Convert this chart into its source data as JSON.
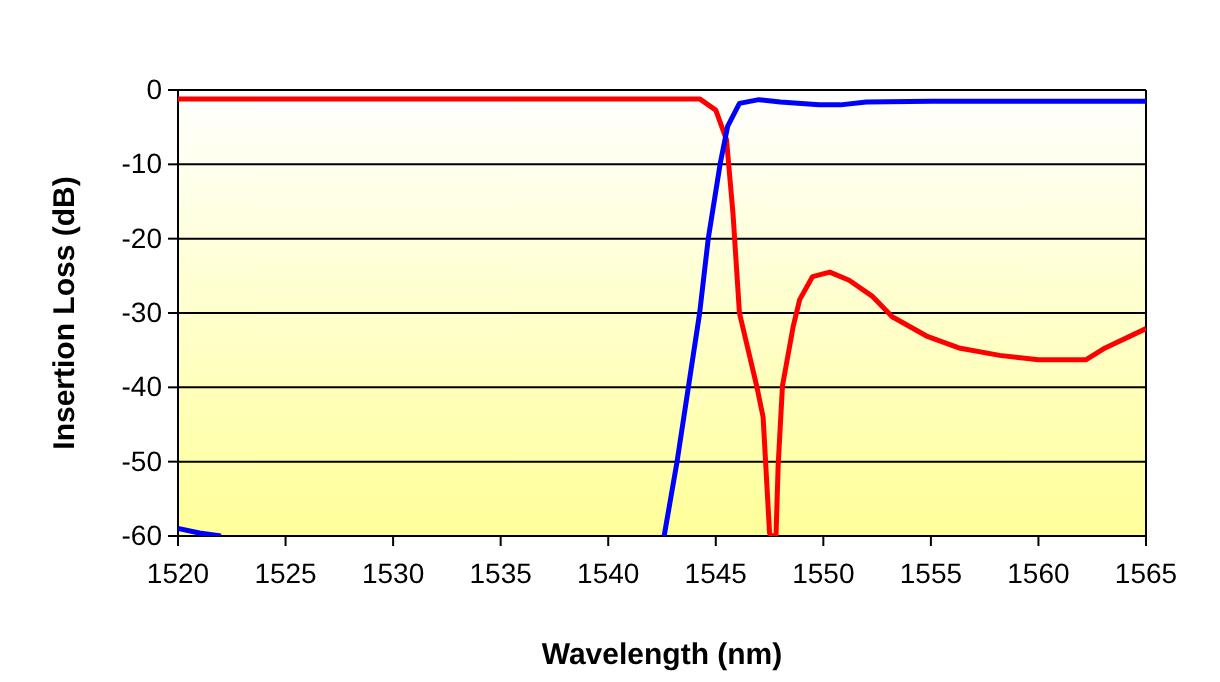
{
  "chart_data": {
    "type": "line",
    "xlabel": "Wavelength (nm)",
    "ylabel": "Insertion Loss (dB)",
    "xlim": [
      1520,
      1565
    ],
    "xticks": [
      1520,
      1525,
      1530,
      1535,
      1540,
      1545,
      1550,
      1555,
      1560,
      1565
    ],
    "ylim": [
      -60,
      0
    ],
    "yticks": [
      0,
      -10,
      -20,
      -30,
      -40,
      -50,
      -60
    ],
    "grid": "y",
    "marker": "none",
    "line_style": "solid",
    "series": [
      {
        "color": "#ff0000",
        "x": [
          1520,
          1530,
          1540,
          1544.25,
          1545,
          1545.5,
          1545.8,
          1546.1,
          1546.9,
          1547.2,
          1547.5,
          1547.6,
          1547.8,
          1547.9,
          1548.1,
          1548.6,
          1548.9,
          1549.5,
          1550.3,
          1551.2,
          1552.3,
          1553.2,
          1554.8,
          1556.3,
          1558.2,
          1560,
          1562.2,
          1563.1,
          1565
        ],
        "values": [
          -1.2,
          -1.2,
          -1.2,
          -1.2,
          -2.7,
          -6.7,
          -16.6,
          -30,
          -39.8,
          -44,
          -59.6,
          -60,
          -60,
          -50.5,
          -39.8,
          -31.8,
          -28.2,
          -25.1,
          -24.5,
          -25.6,
          -27.8,
          -30.5,
          -33.1,
          -34.7,
          -35.7,
          -36.3,
          -36.3,
          -34.7,
          -32.1
        ]
      },
      {
        "color": "#0000ff",
        "x": [
          1520,
          1521,
          1522,
          1522.1,
          1542.5,
          1542.6,
          1543.2,
          1544.25,
          1544.65,
          1545.2,
          1545.55,
          1546.1,
          1547,
          1548,
          1549.8,
          1550.8,
          1552,
          1555,
          1560,
          1565
        ],
        "values": [
          -59,
          -59.6,
          -60,
          null,
          null,
          -60,
          -50,
          -30,
          -20,
          -10,
          -4.9,
          -1.8,
          -1.3,
          -1.6,
          -2,
          -2,
          -1.6,
          -1.5,
          -1.5,
          -1.5
        ]
      }
    ]
  }
}
